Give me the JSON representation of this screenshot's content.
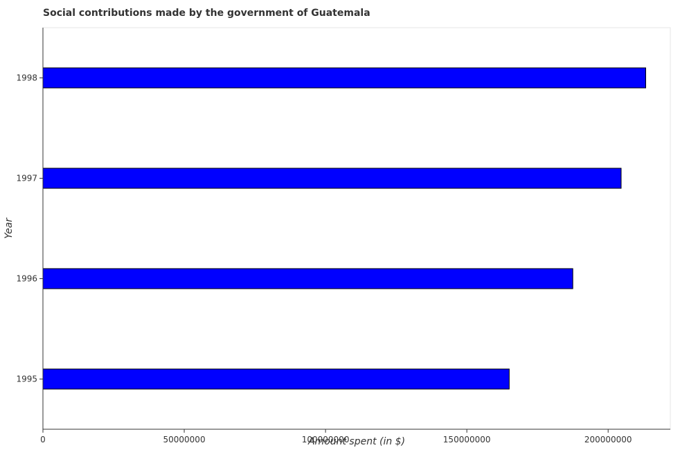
{
  "chart_data": {
    "type": "bar",
    "orientation": "horizontal",
    "title": "Social contributions made by the government of Guatemala",
    "xlabel": "Amount spent (in $)",
    "ylabel": "Year",
    "categories": [
      "1995",
      "1996",
      "1997",
      "1998"
    ],
    "values": [
      165000000,
      187500000,
      204600000,
      213300000
    ],
    "xlim": [
      0,
      222000000
    ],
    "xticks": [
      0,
      50000000,
      100000000,
      150000000,
      200000000
    ],
    "xtick_labels": [
      "0",
      "50000000",
      "100000000",
      "150000000",
      "200000000"
    ],
    "bar_color": "#0000ff",
    "bar_edge_color": "#000000",
    "grid": false,
    "legend": "none"
  }
}
